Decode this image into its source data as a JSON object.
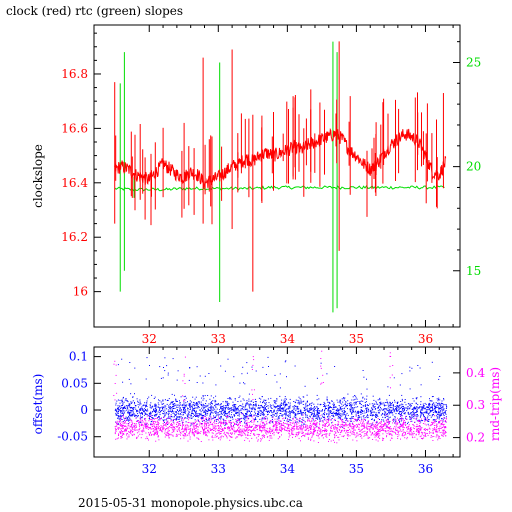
{
  "title": "clock (red) rtc (green) slopes",
  "footer": "2015-05-31 monopole.physics.ubc.ca",
  "colors": {
    "clock": "#ff0000",
    "rtc": "#00dd00",
    "offset": "#0000ff",
    "rnd_trip": "#ff00ff",
    "axis": "#000000"
  },
  "chart_data": [
    {
      "type": "line",
      "title": "clock (red) rtc (green) slopes",
      "xlabel": "",
      "ylabel": "clockslope",
      "xlim": [
        31.2,
        36.5
      ],
      "ylim": [
        15.87,
        16.98
      ],
      "x_ticks": [
        "32",
        "33",
        "34",
        "35",
        "36"
      ],
      "y_ticks": [
        "16",
        "16.2",
        "16.4",
        "16.6",
        "16.8"
      ],
      "y2label": "",
      "y2lim": [
        12.3,
        26.8
      ],
      "y2_ticks": [
        "15",
        "20",
        "25"
      ],
      "series": [
        {
          "name": "clock",
          "axis": "left",
          "x": [
            31.5,
            31.6,
            31.7,
            31.8,
            31.9,
            32.0,
            32.1,
            32.2,
            32.3,
            32.4,
            32.5,
            32.6,
            32.7,
            32.8,
            32.9,
            33.0,
            33.1,
            33.2,
            33.3,
            33.4,
            33.5,
            33.6,
            33.7,
            33.8,
            33.9,
            34.0,
            34.1,
            34.2,
            34.3,
            34.4,
            34.5,
            34.6,
            34.7,
            34.8,
            34.9,
            35.0,
            35.1,
            35.2,
            35.3,
            35.4,
            35.5,
            35.6,
            35.7,
            35.8,
            35.9,
            36.0,
            36.1,
            36.2,
            36.3
          ],
          "y": [
            16.45,
            16.46,
            16.45,
            16.43,
            16.42,
            16.41,
            16.44,
            16.47,
            16.45,
            16.43,
            16.42,
            16.44,
            16.43,
            16.4,
            16.41,
            16.42,
            16.44,
            16.46,
            16.47,
            16.49,
            16.48,
            16.5,
            16.51,
            16.5,
            16.51,
            16.52,
            16.53,
            16.52,
            16.54,
            16.55,
            16.56,
            16.57,
            16.58,
            16.56,
            16.52,
            16.5,
            16.47,
            16.45,
            16.47,
            16.51,
            16.54,
            16.56,
            16.58,
            16.57,
            16.55,
            16.5,
            16.44,
            16.43,
            16.48
          ]
        },
        {
          "name": "rtc",
          "axis": "right",
          "x": [
            31.5,
            31.75,
            32.0,
            32.25,
            32.5,
            32.75,
            33.0,
            33.25,
            33.5,
            33.75,
            34.0,
            34.25,
            34.5,
            34.75,
            35.0,
            35.25,
            35.5,
            35.75,
            36.0,
            36.3
          ],
          "y": [
            18.95,
            18.9,
            18.9,
            18.9,
            18.95,
            18.95,
            18.95,
            18.95,
            18.95,
            19.0,
            19.0,
            19.0,
            19.0,
            19.0,
            19.0,
            19.0,
            19.0,
            19.0,
            19.0,
            19.0
          ]
        }
      ]
    },
    {
      "type": "scatter",
      "xlabel": "",
      "ylabel": "offset(ms)",
      "xlim": [
        31.2,
        36.5
      ],
      "ylim": [
        -0.088,
        0.118
      ],
      "x_ticks": [
        "32",
        "33",
        "34",
        "35",
        "36"
      ],
      "y_ticks": [
        "-0.05",
        "0",
        "0.05",
        "0.1"
      ],
      "y2label": "rnd-trip(ms)",
      "y2lim": [
        0.14,
        0.48
      ],
      "y2_ticks": [
        "0.2",
        "0.3",
        "0.4"
      ],
      "series": [
        {
          "name": "offset",
          "axis": "left",
          "x": [
            31.5,
            36.3
          ],
          "y": [
            0.0,
            0.0
          ],
          "spread": 0.035
        },
        {
          "name": "rnd-trip",
          "axis": "right",
          "x": [
            31.5,
            36.3
          ],
          "y": [
            0.23,
            0.23
          ],
          "spread": 0.05
        }
      ]
    }
  ]
}
